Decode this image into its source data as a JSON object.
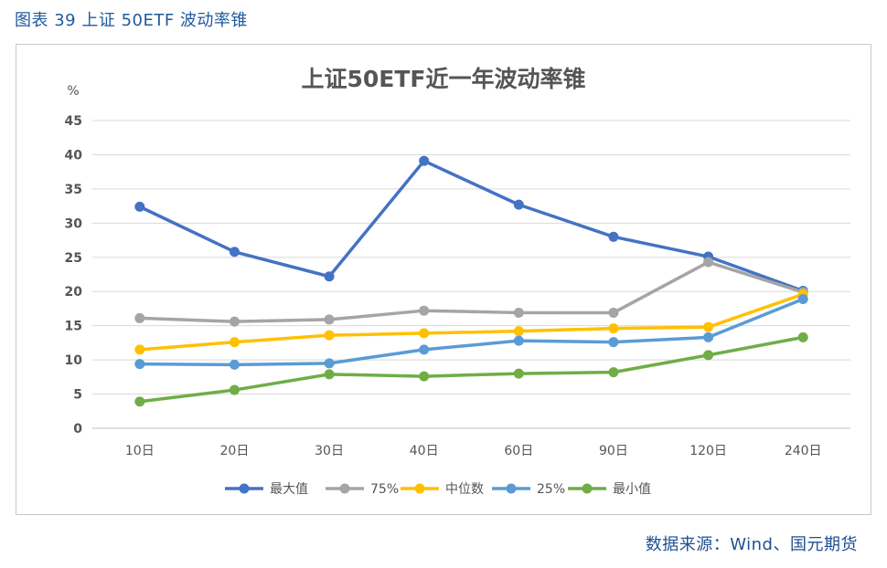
{
  "caption": "图表 39  上证 50ETF 波动率锥",
  "source": "数据来源：Wind、国元期货",
  "chart_data": {
    "type": "line",
    "title": "上证50ETF近一年波动率锥",
    "ylabel": "%",
    "xlabel": "",
    "ylim": [
      0,
      45
    ],
    "yticks": [
      0,
      5,
      10,
      15,
      20,
      25,
      30,
      35,
      40,
      45
    ],
    "grid": true,
    "legend_position": "bottom",
    "categories": [
      "10日",
      "20日",
      "30日",
      "40日",
      "60日",
      "90日",
      "120日",
      "240日"
    ],
    "series": [
      {
        "name": "最大值",
        "color": "#4472c4",
        "values": [
          32.4,
          25.8,
          22.2,
          39.1,
          32.7,
          28.0,
          25.1,
          20.1
        ]
      },
      {
        "name": "75%",
        "color": "#a5a5a5",
        "values": [
          16.1,
          15.6,
          15.9,
          17.2,
          16.9,
          16.9,
          24.3,
          19.9
        ]
      },
      {
        "name": "中位数",
        "color": "#ffc000",
        "values": [
          11.5,
          12.6,
          13.6,
          13.9,
          14.2,
          14.6,
          14.8,
          19.6
        ]
      },
      {
        "name": "25%",
        "color": "#5b9bd5",
        "values": [
          9.4,
          9.3,
          9.5,
          11.5,
          12.8,
          12.6,
          13.3,
          18.9
        ]
      },
      {
        "name": "最小值",
        "color": "#70ad47",
        "values": [
          3.9,
          5.6,
          7.9,
          7.6,
          8.0,
          8.2,
          10.7,
          13.3
        ]
      }
    ]
  }
}
